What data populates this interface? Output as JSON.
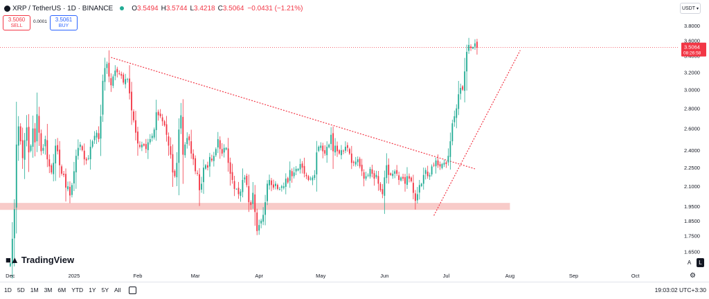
{
  "header": {
    "pair": "XRP / TetherUS · 1D · BINANCE",
    "open_label": "O",
    "open": "3.5494",
    "high_label": "H",
    "high": "3.5744",
    "low_label": "L",
    "low": "3.4218",
    "close_label": "C",
    "close": "3.5064",
    "change": "−0.0431 (−1.21%)"
  },
  "trade": {
    "sell_price": "3.5060",
    "sell_label": "SELL",
    "spread": "0.0001",
    "buy_price": "3.5061",
    "buy_label": "BUY"
  },
  "currency": "USDT",
  "logo_text": "TradingView",
  "price_label": {
    "price": "3.5064",
    "countdown": "08:26:58"
  },
  "timeframes": [
    "1D",
    "5D",
    "1M",
    "3M",
    "6M",
    "YTD",
    "1Y",
    "5Y",
    "All"
  ],
  "clock": "19:03:02 UTC+3:30",
  "scale_buttons": {
    "auto": "A",
    "log": "L"
  },
  "colors": {
    "up": "#22ab94",
    "down": "#f23645",
    "zone": "#f7c2c0",
    "trend": "#f23645"
  },
  "chart_data": {
    "type": "candlestick",
    "title": "XRP / TetherUS · 1D · BINANCE",
    "y_ticks": [
      3.8,
      3.6,
      3.4,
      3.2,
      3.0,
      2.8,
      2.6,
      2.4,
      2.25,
      2.1,
      1.95,
      1.85,
      1.75,
      1.65
    ],
    "y_tick_labels": [
      "3.8000",
      "3.6000",
      "3.4000",
      "3.2000",
      "3.0000",
      "2.8000",
      "2.6000",
      "2.4000",
      "2.2500",
      "2.1000",
      "1.9500",
      "1.8500",
      "1.7500",
      "1.6500"
    ],
    "ylim": [
      1.55,
      3.95
    ],
    "scale": "log",
    "x_labels": [
      "Dec",
      "2025",
      "Feb",
      "Mar",
      "Apr",
      "May",
      "Jun",
      "Jul",
      "Aug",
      "Sep",
      "Oct"
    ],
    "x_label_days": [
      0,
      31,
      62,
      90,
      121,
      151,
      182,
      212,
      243,
      274,
      304
    ],
    "start_day": -5,
    "end_day": 325,
    "last_price": 3.5064,
    "support_zone": {
      "low": 1.925,
      "high": 1.975,
      "from_day": -5,
      "to_day": 243
    },
    "trendlines": [
      {
        "name": "descending-resistance",
        "from": [
          49,
          3.38
        ],
        "to": [
          226,
          2.24
        ]
      },
      {
        "name": "ascending-support",
        "from": [
          206,
          1.885
        ],
        "to": [
          248,
          3.47
        ]
      }
    ],
    "closes": [
      1.58,
      1.73,
      1.93,
      2.45,
      2.62,
      2.48,
      2.33,
      2.49,
      2.61,
      2.38,
      2.44,
      2.6,
      2.47,
      2.74,
      2.56,
      2.39,
      2.42,
      2.5,
      2.32,
      2.26,
      2.21,
      2.29,
      2.44,
      2.39,
      2.27,
      2.2,
      2.19,
      2.09,
      2.1,
      2.03,
      2.11,
      2.22,
      2.35,
      2.42,
      2.45,
      2.4,
      2.32,
      2.31,
      2.33,
      2.43,
      2.48,
      2.53,
      2.56,
      2.5,
      2.72,
      3.1,
      3.25,
      3.3,
      3.15,
      3.05,
      3.15,
      3.22,
      3.2,
      3.18,
      3.16,
      3.08,
      3.12,
      3.12,
      2.96,
      2.78,
      2.68,
      2.56,
      2.46,
      2.43,
      2.45,
      2.44,
      2.41,
      2.47,
      2.5,
      2.53,
      2.59,
      2.76,
      2.73,
      2.72,
      2.67,
      2.63,
      2.54,
      2.44,
      2.36,
      2.21,
      2.18,
      2.29,
      2.59,
      2.73,
      2.36,
      2.45,
      2.51,
      2.49,
      2.37,
      2.32,
      2.22,
      2.2,
      2.07,
      2.12,
      2.25,
      2.27,
      2.25,
      2.34,
      2.31,
      2.35,
      2.41,
      2.5,
      2.41,
      2.37,
      2.42,
      2.42,
      2.29,
      2.2,
      2.15,
      2.08,
      2.08,
      2.04,
      2.06,
      2.15,
      2.17,
      2.11,
      1.98,
      1.96,
      2.05,
      1.91,
      1.78,
      1.82,
      1.85,
      1.89,
      1.98,
      2.12,
      2.15,
      2.11,
      2.09,
      2.12,
      2.08,
      2.08,
      2.1,
      2.1,
      2.16,
      2.13,
      2.23,
      2.18,
      2.21,
      2.24,
      2.24,
      2.28,
      2.25,
      2.2,
      2.18,
      2.15,
      2.16,
      2.17,
      2.19,
      2.38,
      2.43,
      2.44,
      2.39,
      2.37,
      2.43,
      2.45,
      2.54,
      2.39,
      2.44,
      2.39,
      2.37,
      2.4,
      2.39,
      2.43,
      2.42,
      2.37,
      2.29,
      2.29,
      2.3,
      2.32,
      2.26,
      2.22,
      2.16,
      2.18,
      2.19,
      2.24,
      2.2,
      2.16,
      2.19,
      2.12,
      2.07,
      2.04,
      2.17,
      2.27,
      2.19,
      2.19,
      2.2,
      2.22,
      2.2,
      2.15,
      2.17,
      2.16,
      2.12,
      2.18,
      2.16,
      2.14,
      2.05,
      1.99,
      2.04,
      2.11,
      2.12,
      2.19,
      2.23,
      2.18,
      2.19,
      2.26,
      2.27,
      2.31,
      2.27,
      2.26,
      2.28,
      2.29,
      2.28,
      2.35,
      2.48,
      2.65,
      2.72,
      2.8,
      2.95,
      3.02,
      3.0,
      3.21,
      3.45,
      3.54,
      3.5,
      3.51,
      3.56,
      3.5064
    ],
    "note": "Daily candles approx. from late Nov 2024 to mid Jul 2025; values estimated from the log price axis."
  }
}
